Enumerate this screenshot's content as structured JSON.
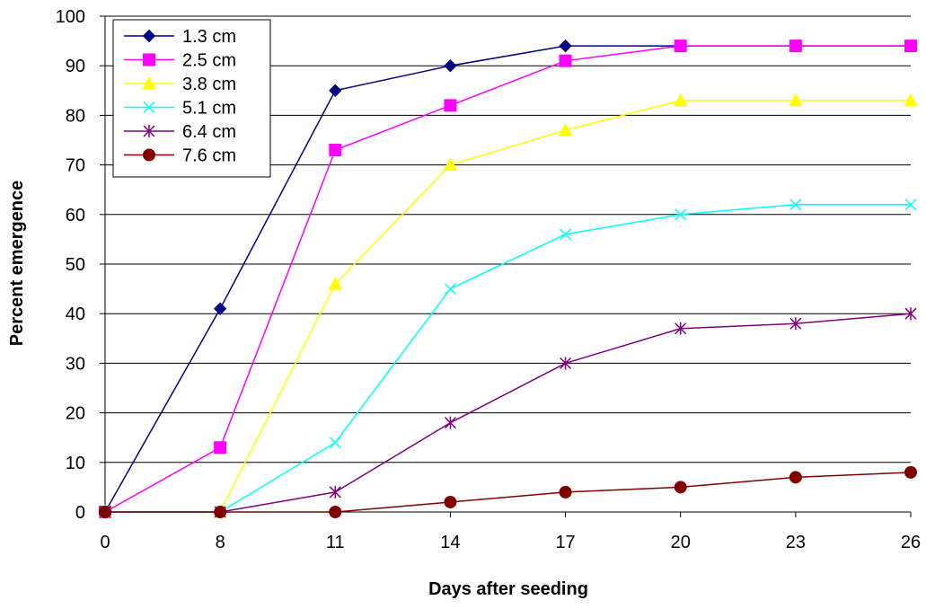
{
  "chart_data": {
    "type": "line",
    "title": "",
    "xlabel": "Days after seeding",
    "ylabel": "Percent emergence",
    "categories": [
      "0",
      "8",
      "11",
      "14",
      "17",
      "20",
      "23",
      "26"
    ],
    "ylim": [
      0,
      100
    ],
    "yticks": [
      "0",
      "10",
      "20",
      "30",
      "40",
      "50",
      "60",
      "70",
      "80",
      "90",
      "100"
    ],
    "grid": "horizontal",
    "legend_position": "top-left",
    "series": [
      {
        "name": "1.3 cm",
        "color": "#000080",
        "marker": "diamond",
        "values": [
          0,
          41,
          85,
          90,
          94,
          94,
          94,
          94
        ]
      },
      {
        "name": "2.5 cm",
        "color": "#FF00FF",
        "marker": "square",
        "values": [
          0,
          13,
          73,
          82,
          91,
          94,
          94,
          94
        ]
      },
      {
        "name": "3.8 cm",
        "color": "#FFFF00",
        "marker": "triangle",
        "values": [
          0,
          0,
          46,
          70,
          77,
          83,
          83,
          83
        ]
      },
      {
        "name": "5.1 cm",
        "color": "#00FFFF",
        "marker": "x",
        "values": [
          0,
          0,
          14,
          45,
          56,
          60,
          62,
          62
        ]
      },
      {
        "name": "6.4 cm",
        "color": "#800080",
        "marker": "star",
        "values": [
          0,
          0,
          4,
          18,
          30,
          37,
          38,
          40
        ]
      },
      {
        "name": "7.6 cm",
        "color": "#800000",
        "marker": "circle",
        "values": [
          0,
          0,
          0,
          2,
          4,
          5,
          7,
          8
        ]
      }
    ]
  }
}
